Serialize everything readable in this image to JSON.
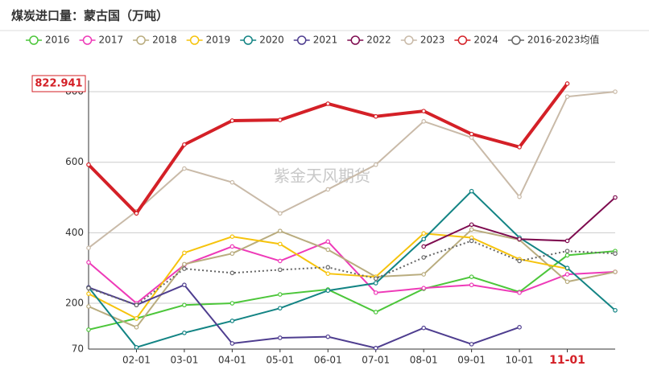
{
  "chart_data": {
    "type": "line",
    "title": "煤炭进口量：蒙古国（万吨）",
    "watermark": "紫金天风期货",
    "categories": [
      null,
      "02-01",
      "03-01",
      "04-01",
      "05-01",
      "06-01",
      "07-01",
      "08-01",
      "09-01",
      "10-01",
      "11-01",
      null
    ],
    "highlight_category": 10,
    "highlight_color": "#d42027",
    "ylim": [
      70,
      832
    ],
    "yticks": [
      70,
      200,
      400,
      600,
      800
    ],
    "grid": true,
    "y_marker": 822.941,
    "series": [
      {
        "name": "2016",
        "color": "#4cc63a",
        "values": [
          125,
          157,
          195,
          200,
          225,
          239,
          175,
          241,
          275,
          232,
          336,
          348
        ]
      },
      {
        "name": "2017",
        "color": "#ee3ab8",
        "values": [
          316,
          200,
          309,
          361,
          320,
          375,
          230,
          243,
          252,
          230,
          282,
          289
        ]
      },
      {
        "name": "2018",
        "color": "#b9ac7e",
        "values": [
          191,
          132,
          311,
          341,
          405,
          352,
          275,
          282,
          409,
          380,
          261,
          289
        ]
      },
      {
        "name": "2019",
        "color": "#f6c30c",
        "values": [
          227,
          157,
          343,
          389,
          368,
          284,
          275,
          398,
          386,
          325,
          298,
          null
        ]
      },
      {
        "name": "2020",
        "color": "#138484",
        "values": [
          245,
          75,
          116,
          150,
          186,
          236,
          257,
          382,
          518,
          386,
          300,
          180
        ]
      },
      {
        "name": "2021",
        "color": "#4e3d8f",
        "values": [
          245,
          195,
          252,
          86,
          102,
          105,
          73,
          130,
          84,
          132,
          null,
          null
        ]
      },
      {
        "name": "2022",
        "color": "#7e0b4f",
        "values": [
          null,
          null,
          null,
          null,
          null,
          null,
          null,
          361,
          423,
          382,
          377,
          500
        ]
      },
      {
        "name": "2023",
        "color": "#c9baa8",
        "values": [
          357,
          461,
          582,
          543,
          455,
          523,
          593,
          716,
          670,
          502,
          786,
          800
        ]
      },
      {
        "name": "2024",
        "color": "#d42027",
        "width": 4,
        "values": [
          593,
          455,
          650,
          718,
          720,
          766,
          730,
          745,
          680,
          643,
          822.941,
          null
        ]
      },
      {
        "name": "2016-2023均值",
        "color": "#666666",
        "dashed": true,
        "values": [
          243,
          195,
          298,
          286,
          295,
          302,
          270,
          330,
          377,
          320,
          348,
          341
        ]
      }
    ]
  }
}
